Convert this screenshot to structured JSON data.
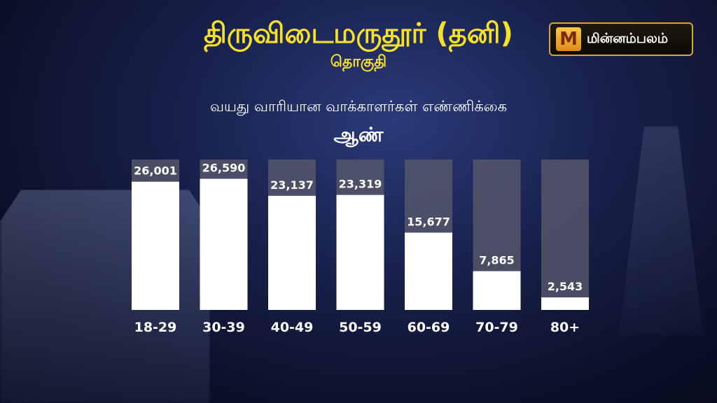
{
  "header": {
    "title": "திருவிடைமருதூர் (தனி)",
    "subtitle": "தொகுதி"
  },
  "logo": {
    "mark": "M",
    "text": "மின்னம்பலம்"
  },
  "chart_data": {
    "type": "bar",
    "title": "வயது வாரியான வாக்காளர்கள் எண்ணிக்கை",
    "subtitle": "ஆண்",
    "categories": [
      "18-29",
      "30-39",
      "40-49",
      "50-59",
      "60-69",
      "70-79",
      "80+"
    ],
    "values": [
      26001,
      26590,
      23137,
      23319,
      15677,
      7865,
      2543
    ],
    "value_labels": [
      "26,001",
      "26,590",
      "23,137",
      "23,319",
      "15,677",
      "7,865",
      "2,543"
    ],
    "ylim": [
      0,
      30500
    ],
    "grid": false,
    "legend": "none",
    "colors": {
      "bar": "#ffffff",
      "track": "#55566a",
      "text": "#ffffff"
    }
  }
}
